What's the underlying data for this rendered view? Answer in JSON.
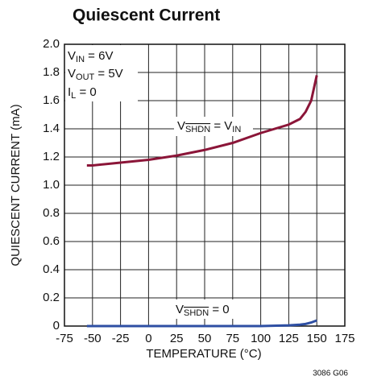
{
  "chart_data": {
    "type": "line",
    "title": "Quiescent Current",
    "xlabel": "TEMPERATURE (°C)",
    "ylabel": "QUIESCENT CURRENT (mA)",
    "footnote": "3086 G06",
    "xlim": [
      -75,
      175
    ],
    "xticks": [
      -75,
      -50,
      -25,
      0,
      25,
      50,
      75,
      100,
      125,
      150,
      175
    ],
    "ylim": [
      0,
      2.0
    ],
    "yticks": [
      0,
      0.2,
      0.4,
      0.6,
      0.8,
      {
        "value": 1.0,
        "label": "1.0"
      },
      1.2,
      1.4,
      1.6,
      1.8,
      {
        "value": 2.0,
        "label": "2.0"
      }
    ],
    "grid": true,
    "series": [
      {
        "color": "#8b1538",
        "x": [
          -55,
          -50,
          -25,
          0,
          25,
          50,
          75,
          100,
          125,
          135,
          140,
          145,
          150
        ],
        "values": [
          1.14,
          1.14,
          1.16,
          1.18,
          1.21,
          1.25,
          1.3,
          1.37,
          1.43,
          1.47,
          1.52,
          1.6,
          1.78
        ]
      },
      {
        "color": "#2e4fa3",
        "x": [
          -55,
          0,
          100,
          125,
          135,
          140,
          145,
          150
        ],
        "values": [
          0,
          0,
          0,
          0.005,
          0.01,
          0.015,
          0.025,
          0.04
        ]
      }
    ],
    "annotations": [
      {
        "segments": [
          {
            "text": "V"
          },
          {
            "text": "IN",
            "style": "sub"
          },
          {
            "text": " = 6V"
          }
        ]
      },
      {
        "segments": [
          {
            "text": "V"
          },
          {
            "text": "OUT",
            "style": "sub"
          },
          {
            "text": " = 5V"
          }
        ]
      },
      {
        "segments": [
          {
            "text": "I"
          },
          {
            "text": "L",
            "style": "sub"
          },
          {
            "text": " = 0"
          }
        ]
      },
      {
        "segments": [
          {
            "text": "V"
          },
          {
            "text": "SHDN",
            "style": "sub overline"
          },
          {
            "text": " = V"
          },
          {
            "text": "IN",
            "style": "sub"
          }
        ]
      },
      {
        "segments": [
          {
            "text": "V"
          },
          {
            "text": "SHDN",
            "style": "sub overline"
          },
          {
            "text": " = 0"
          }
        ]
      }
    ]
  }
}
